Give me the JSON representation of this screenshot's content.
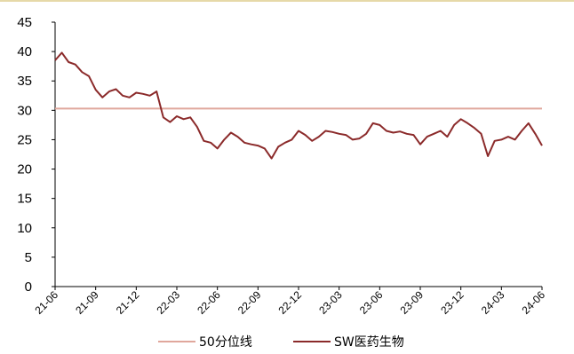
{
  "colors": {
    "series_line": "#8b2a2a",
    "reference_line": "#e0a79c",
    "axis": "#000000"
  },
  "chart_data": {
    "type": "line",
    "title": "",
    "xlabel": "",
    "ylabel": "",
    "ylim": [
      0,
      45
    ],
    "yticks": [
      0,
      5,
      10,
      15,
      20,
      25,
      30,
      35,
      40,
      45
    ],
    "xlim": [
      "2021-06",
      "2024-06"
    ],
    "x_tick_labels": [
      "21-06",
      "21-09",
      "21-12",
      "22-03",
      "22-06",
      "22-09",
      "22-12",
      "23-03",
      "23-06",
      "23-09",
      "23-12",
      "24-03",
      "24-06"
    ],
    "legend_position": "bottom",
    "grid": false,
    "series": [
      {
        "name": "50分位线",
        "style": "flat",
        "values": [
          30.3
        ]
      },
      {
        "name": "SW医药生物",
        "x": [
          0,
          0.5,
          1,
          1.5,
          2,
          2.5,
          3,
          3.5,
          4,
          4.5,
          5,
          5.5,
          6,
          6.5,
          7,
          7.5,
          8,
          8.5,
          9,
          9.5,
          10,
          10.5,
          11,
          11.5,
          12,
          12.5,
          13,
          13.5,
          14,
          14.5,
          15,
          15.5,
          16,
          16.5,
          17,
          17.5,
          18,
          18.5,
          19,
          19.5,
          20,
          20.5,
          21,
          21.5,
          22,
          22.5,
          23,
          23.5,
          24,
          24.5,
          25,
          25.5,
          26,
          26.5,
          27,
          27.5,
          28,
          28.5,
          29,
          29.5,
          30,
          30.5,
          31,
          31.5,
          32,
          32.5,
          33,
          33.5,
          34,
          34.5,
          35,
          35.5,
          36
        ],
        "values": [
          38.5,
          39.8,
          38.2,
          37.8,
          36.5,
          35.8,
          33.5,
          32.2,
          33.2,
          33.6,
          32.5,
          32.2,
          33.0,
          32.8,
          32.5,
          33.2,
          28.8,
          28.0,
          29.0,
          28.5,
          28.8,
          27.2,
          24.8,
          24.5,
          23.5,
          25.0,
          26.2,
          25.5,
          24.5,
          24.2,
          24.0,
          23.5,
          21.8,
          23.8,
          24.5,
          25.0,
          26.5,
          25.8,
          24.8,
          25.5,
          26.5,
          26.3,
          26.0,
          25.8,
          25.0,
          25.2,
          26.0,
          27.8,
          27.5,
          26.5,
          26.2,
          26.4,
          26.0,
          25.8,
          24.2,
          25.5,
          26.0,
          26.5,
          25.5,
          27.5,
          28.5,
          27.8,
          27.0,
          26.0,
          22.2,
          24.8,
          25.0,
          25.5,
          25.0,
          26.5,
          27.8,
          26.0,
          24.0
        ]
      }
    ]
  }
}
